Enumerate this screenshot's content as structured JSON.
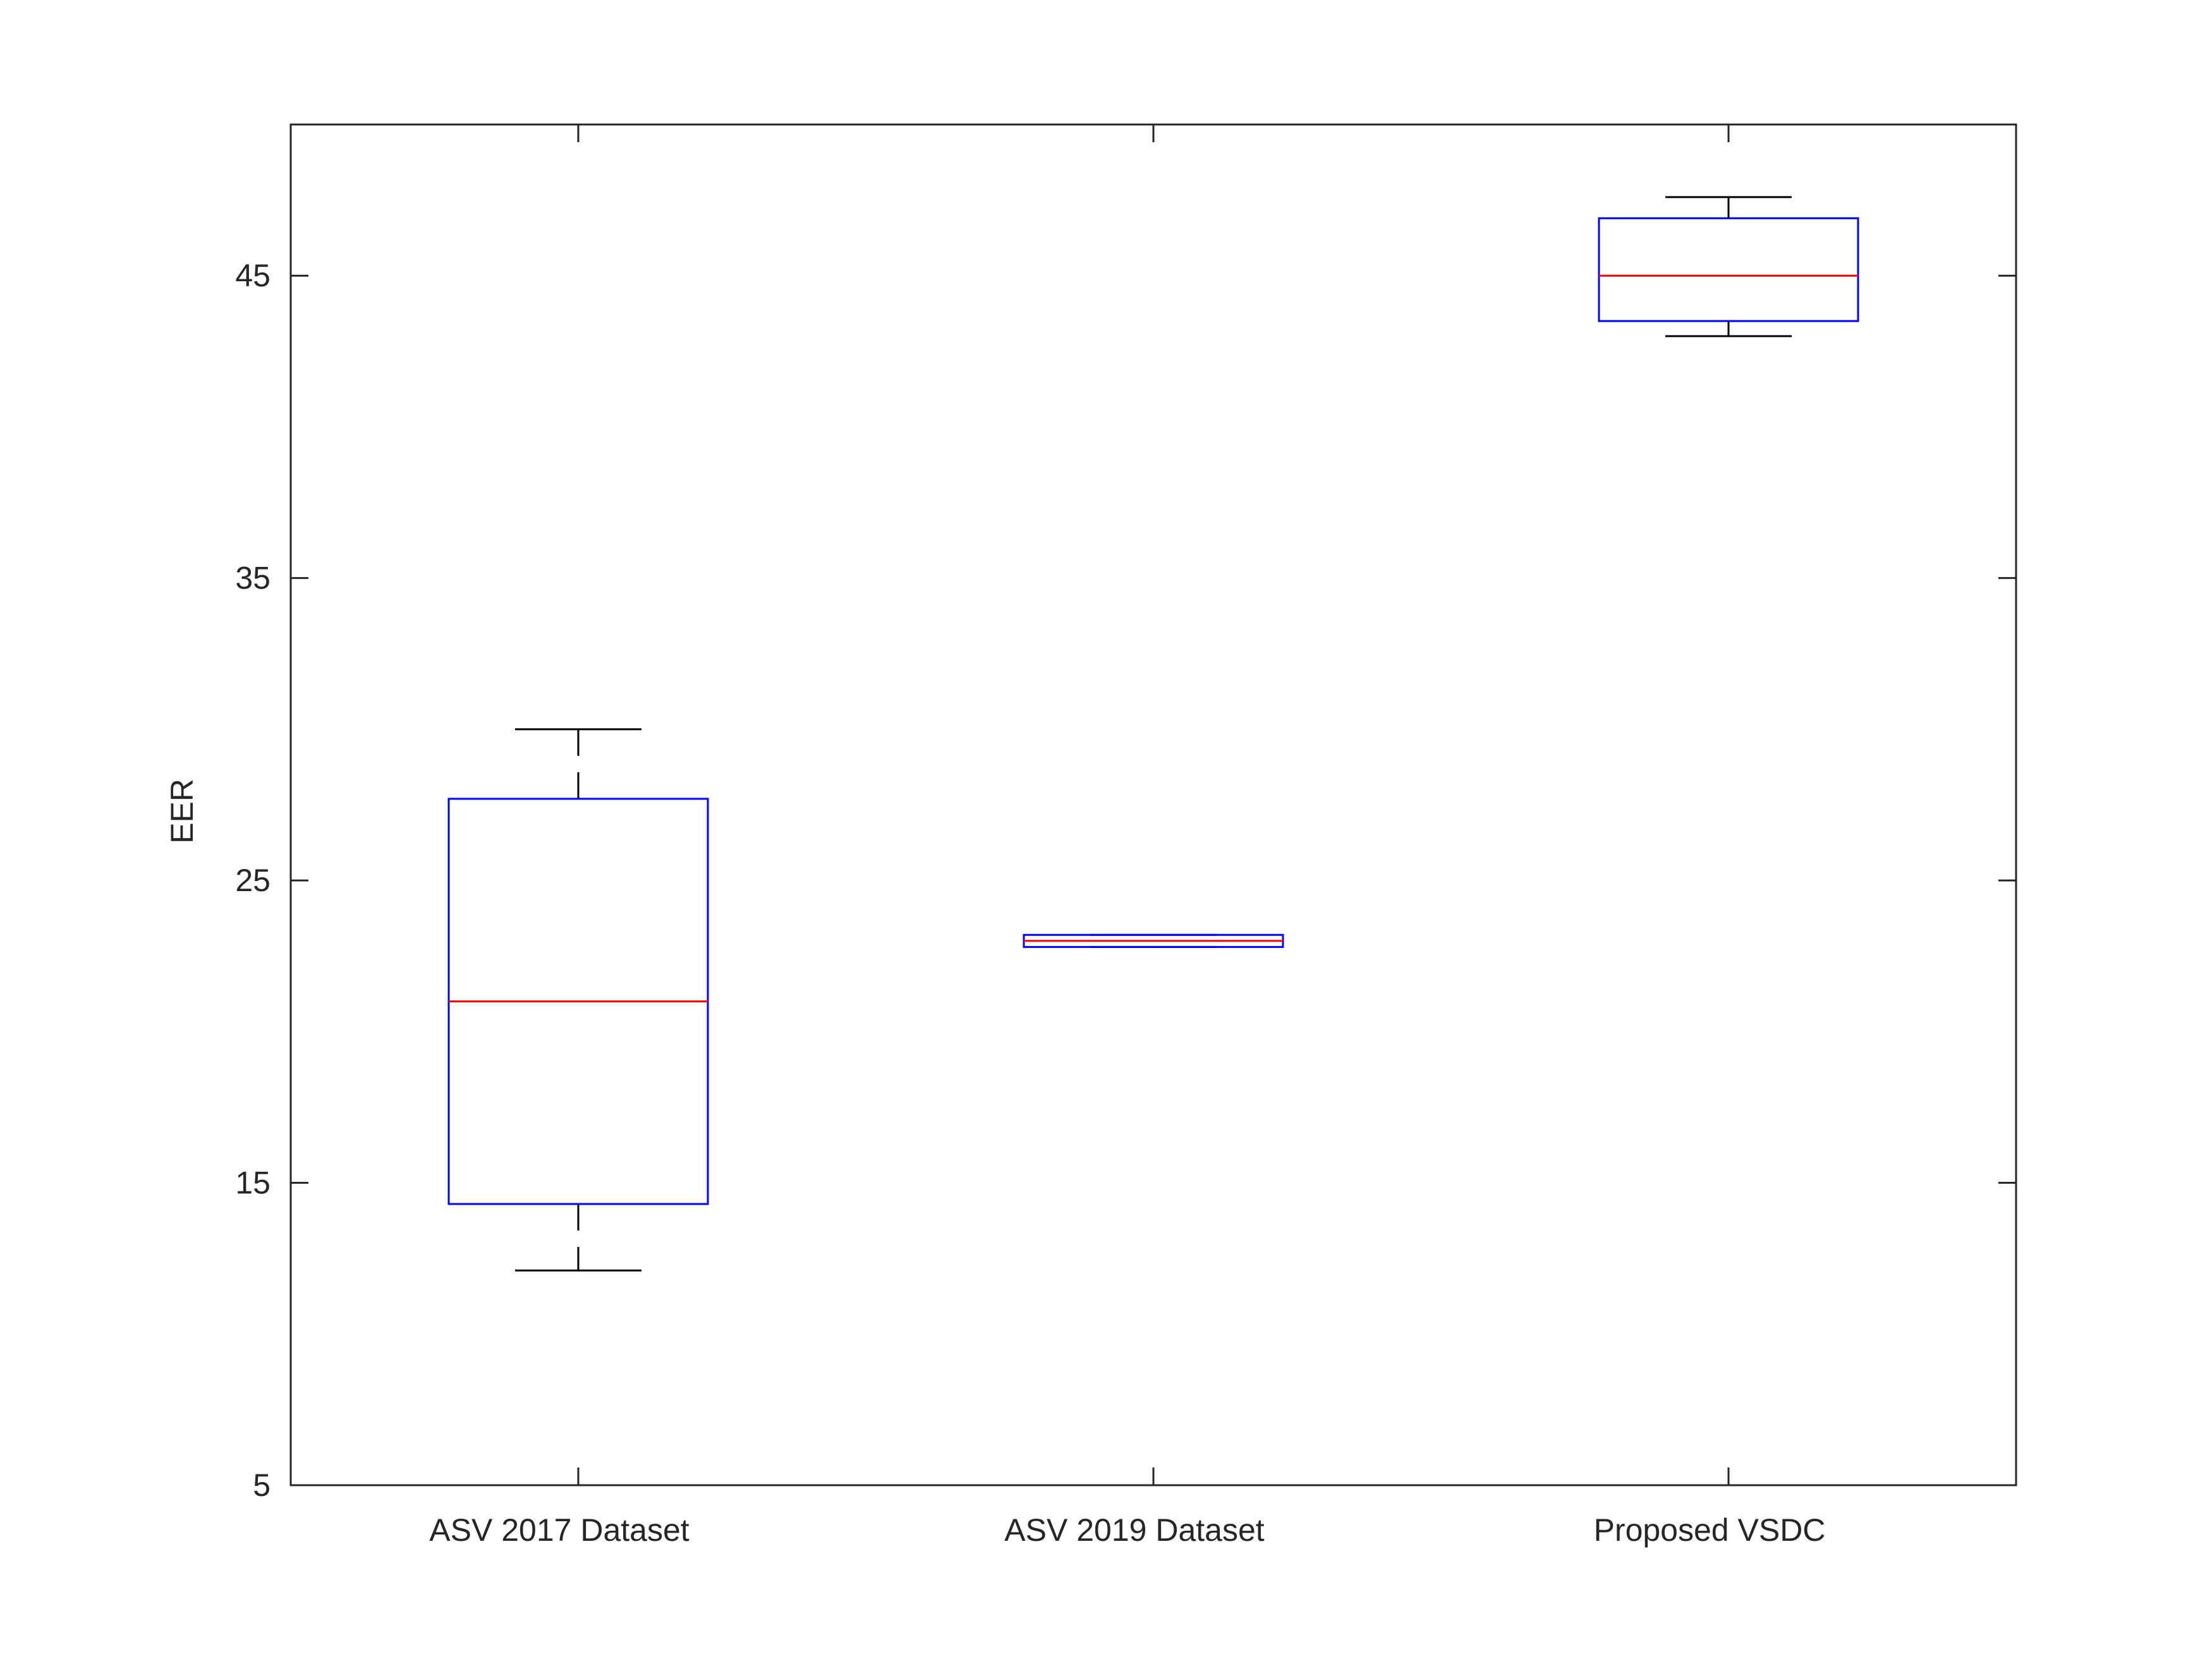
{
  "chart_data": {
    "type": "box",
    "title": "",
    "xlabel": "",
    "ylabel": "EER",
    "ylim": [
      5,
      50
    ],
    "yticks": [
      5,
      15,
      25,
      35,
      45
    ],
    "ytick_labels": [
      "5",
      "15",
      "25",
      "35",
      "45"
    ],
    "grid": false,
    "categories": [
      "ASV 2017 Dataset",
      "ASV 2019 Dataset",
      "Proposed VSDC"
    ],
    "boxes": [
      {
        "category": "ASV 2017 Dataset",
        "whisker_low": 12.1,
        "q1": 14.3,
        "median": 21.0,
        "q3": 27.7,
        "whisker_high": 30.0
      },
      {
        "category": "ASV 2019 Dataset",
        "whisker_low": 22.8,
        "q1": 22.8,
        "median": 23.0,
        "q3": 23.2,
        "whisker_high": 23.2
      },
      {
        "category": "Proposed VSDC",
        "whisker_low": 43.0,
        "q1": 43.5,
        "median": 45.0,
        "q3": 46.9,
        "whisker_high": 47.6
      }
    ],
    "colors": {
      "box": "#0000ff",
      "median": "#ff0000",
      "whisker": "#000000",
      "axes": "#262626"
    }
  }
}
